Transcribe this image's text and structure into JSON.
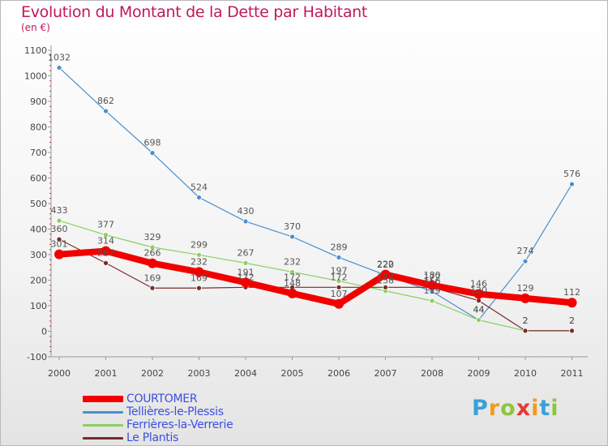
{
  "title": "Evolution du Montant de la Dette par Habitant",
  "unit": "(en €)",
  "brand": "Proxiti",
  "chart_data": {
    "type": "line",
    "x": [
      "2000",
      "2001",
      "2002",
      "2003",
      "2004",
      "2005",
      "2006",
      "2007",
      "2008",
      "2009",
      "2010",
      "2011"
    ],
    "ylim": [
      -100,
      1100
    ],
    "yticks": [
      -100,
      0,
      100,
      200,
      300,
      400,
      500,
      600,
      700,
      800,
      900,
      1000,
      1100
    ],
    "grid": false,
    "legend": "bottom-left",
    "series": [
      {
        "name": "Tellières-le-Plessis",
        "color": "#4a8fcc",
        "lineWidth": 1.2,
        "pointRadius": 3,
        "values": [
          1032,
          862,
          698,
          524,
          430,
          370,
          289,
          220,
          156,
          44,
          274,
          576
        ]
      },
      {
        "name": "Ferrières-la-Verrerie",
        "color": "#8ad060",
        "lineWidth": 1.2,
        "pointRadius": 3,
        "values": [
          433,
          377,
          329,
          299,
          267,
          232,
          197,
          158,
          119,
          44,
          2,
          2
        ]
      },
      {
        "name": "Le Plantis",
        "color": "#7b2a2a",
        "lineWidth": 1.2,
        "pointRadius": 3,
        "values": [
          360,
          267,
          169,
          169,
          172,
          172,
          172,
          172,
          172,
          120,
          2,
          2
        ]
      },
      {
        "name": "COURTOMER",
        "color": "#f20000",
        "lineWidth": 8,
        "pointRadius": 6,
        "values": [
          301,
          314,
          266,
          232,
          191,
          148,
          107,
          222,
          180,
          146,
          129,
          112
        ]
      }
    ],
    "labels": [
      {
        "series": 0,
        "text": [
          "1032",
          "862",
          "698",
          "524",
          "430",
          "370",
          "289",
          "220",
          "156",
          "44",
          "274",
          "576"
        ]
      },
      {
        "series": 1,
        "text": [
          "433",
          "377",
          "329",
          "299",
          "267",
          "232",
          "197",
          "158",
          "119",
          "44",
          "2",
          "2"
        ]
      },
      {
        "series": 2,
        "text": [
          "360",
          "267",
          "169",
          "169",
          "172",
          "172",
          "172",
          "172",
          "172",
          "120",
          "2",
          "2"
        ]
      },
      {
        "series": 3,
        "text": [
          "301",
          "314",
          "266",
          "232",
          "191",
          "148",
          "107",
          "222",
          "180",
          "146",
          "129",
          "112"
        ]
      }
    ]
  },
  "legend_items": [
    {
      "label": "COURTOMER",
      "color": "#f20000"
    },
    {
      "label": "Tellières-le-Plessis",
      "color": "#4a8fcc"
    },
    {
      "label": "Ferrières-la-Verrerie",
      "color": "#8ad060"
    },
    {
      "label": "Le Plantis",
      "color": "#7b2a2a"
    }
  ]
}
